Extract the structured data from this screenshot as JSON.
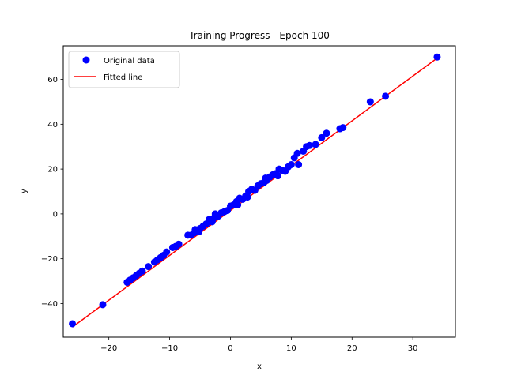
{
  "chart_data": {
    "type": "scatter",
    "title": "Training Progress - Epoch 100",
    "xlabel": "x",
    "ylabel": "y",
    "xlim": [
      -27.5,
      37
    ],
    "ylim": [
      -55,
      75
    ],
    "xticks": [
      -20,
      -10,
      0,
      10,
      20,
      30
    ],
    "yticks": [
      -40,
      -20,
      0,
      20,
      40,
      60
    ],
    "grid": false,
    "legend_position": "top-left",
    "series": [
      {
        "name": "Original data",
        "kind": "scatter",
        "color": "#0000ff",
        "points": [
          [
            -26.0,
            -49.0
          ],
          [
            -21.0,
            -40.5
          ],
          [
            -17.0,
            -30.5
          ],
          [
            -16.5,
            -29.5
          ],
          [
            -16.0,
            -28.5
          ],
          [
            -15.5,
            -27.5
          ],
          [
            -15.0,
            -26.5
          ],
          [
            -14.5,
            -25.5
          ],
          [
            -13.5,
            -23.5
          ],
          [
            -12.5,
            -21.5
          ],
          [
            -12.0,
            -20.5
          ],
          [
            -11.5,
            -19.5
          ],
          [
            -11.0,
            -18.5
          ],
          [
            -10.5,
            -17.0
          ],
          [
            -9.5,
            -15.0
          ],
          [
            -9.0,
            -14.5
          ],
          [
            -8.5,
            -13.5
          ],
          [
            -7.0,
            -9.5
          ],
          [
            -6.5,
            -9.5
          ],
          [
            -6.0,
            -8.5
          ],
          [
            -5.8,
            -7.0
          ],
          [
            -5.2,
            -8.0
          ],
          [
            -5.0,
            -6.5
          ],
          [
            -4.5,
            -5.5
          ],
          [
            -4.0,
            -4.5
          ],
          [
            -3.5,
            -2.5
          ],
          [
            -3.0,
            -3.5
          ],
          [
            -2.8,
            -2.0
          ],
          [
            -2.5,
            0.0
          ],
          [
            -2.0,
            -1.0
          ],
          [
            -1.5,
            0.5
          ],
          [
            -1.0,
            1.0
          ],
          [
            -0.5,
            1.5
          ],
          [
            0.0,
            3.5
          ],
          [
            0.5,
            4.0
          ],
          [
            1.0,
            5.5
          ],
          [
            1.2,
            4.0
          ],
          [
            1.5,
            7.0
          ],
          [
            2.0,
            6.5
          ],
          [
            2.5,
            8.0
          ],
          [
            2.8,
            7.5
          ],
          [
            3.0,
            10.0
          ],
          [
            3.5,
            11.0
          ],
          [
            4.0,
            10.5
          ],
          [
            4.5,
            12.5
          ],
          [
            5.0,
            13.5
          ],
          [
            5.5,
            14.0
          ],
          [
            5.8,
            16.0
          ],
          [
            6.0,
            15.0
          ],
          [
            6.5,
            16.5
          ],
          [
            7.0,
            17.5
          ],
          [
            7.5,
            18.0
          ],
          [
            7.8,
            17.0
          ],
          [
            8.0,
            20.0
          ],
          [
            8.5,
            19.5
          ],
          [
            9.0,
            19.0
          ],
          [
            9.5,
            21.0
          ],
          [
            10.0,
            22.0
          ],
          [
            10.5,
            25.0
          ],
          [
            11.0,
            27.0
          ],
          [
            11.2,
            22.0
          ],
          [
            12.0,
            28.0
          ],
          [
            12.5,
            30.0
          ],
          [
            13.0,
            30.5
          ],
          [
            14.0,
            31.0
          ],
          [
            15.0,
            34.0
          ],
          [
            15.8,
            36.0
          ],
          [
            18.0,
            38.0
          ],
          [
            18.5,
            38.5
          ],
          [
            23.0,
            50.0
          ],
          [
            25.5,
            52.5
          ],
          [
            34.0,
            70.0
          ]
        ]
      },
      {
        "name": "Fitted line",
        "kind": "line",
        "color": "#ff0000",
        "points": [
          [
            -26.0,
            -50.5
          ],
          [
            34.0,
            69.5
          ]
        ]
      }
    ]
  }
}
